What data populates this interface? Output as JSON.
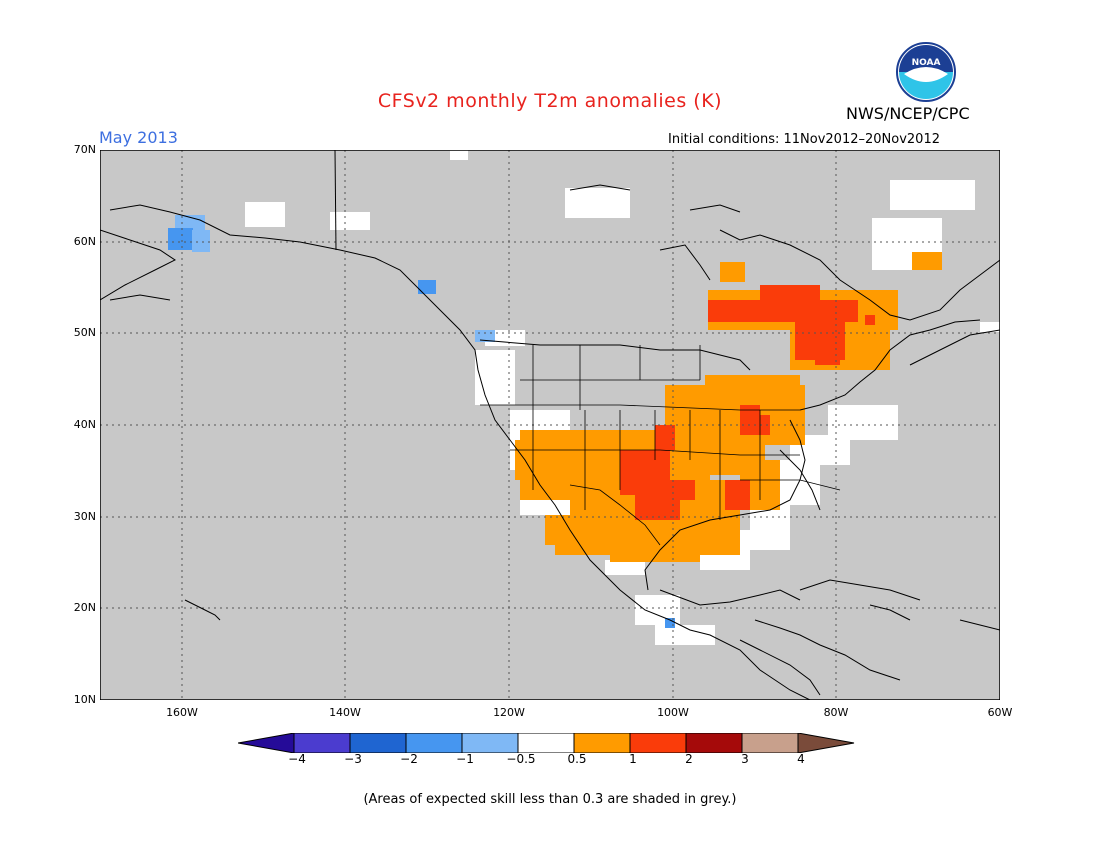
{
  "header": {
    "title": "CFSv2 monthly T2m anomalies (K)",
    "organization": "NWS/NCEP/CPC",
    "logo_text": "NOAA",
    "month": "May 2013",
    "initial_conditions": "Initial conditions: 11Nov2012–20Nov2012"
  },
  "map": {
    "lat_labels": [
      "70N",
      "60N",
      "50N",
      "40N",
      "30N",
      "20N",
      "10N"
    ],
    "lon_labels": [
      "160W",
      "140W",
      "120W",
      "100W",
      "80W",
      "60W"
    ],
    "skill_mask_color": "#c8c8c8"
  },
  "legend": {
    "colors": [
      "#250b98",
      "#4b3ccf",
      "#1f65d1",
      "#4696f0",
      "#7fb8f5",
      "#ffffff",
      "#ff9b00",
      "#fa3c0a",
      "#a50a0a",
      "#c8a08c",
      "#7a4b3a"
    ],
    "labels": [
      "−4",
      "−3",
      "−2",
      "−1",
      "−0.5",
      "0.5",
      "1",
      "2",
      "3",
      "4"
    ]
  },
  "footer": {
    "note": "(Areas of expected skill less than 0.3 are shaded in grey.)"
  }
}
